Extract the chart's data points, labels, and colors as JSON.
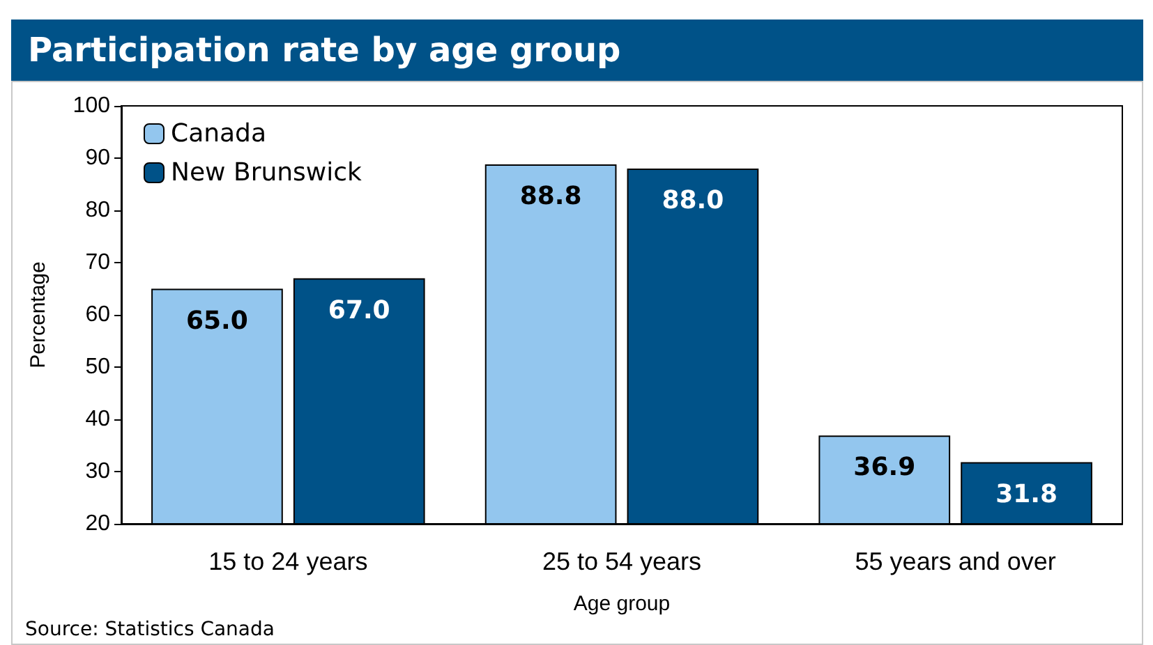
{
  "chart_data": {
    "type": "bar",
    "title": "Participation rate by age group",
    "xlabel": "Age group",
    "ylabel": "Percentage",
    "categories": [
      "15 to 24 years",
      "25 to 54 years",
      "55 years and over"
    ],
    "series": [
      {
        "name": "Canada",
        "color": "#93c6ee",
        "values": [
          65.0,
          88.8,
          36.9
        ],
        "value_labels": [
          "65.0",
          "88.8",
          "36.9"
        ]
      },
      {
        "name": "New Brunswick",
        "color": "#005288",
        "values": [
          67.0,
          88.0,
          31.8
        ],
        "value_labels": [
          "67.0",
          "88.0",
          "31.8"
        ]
      }
    ],
    "ylim": [
      20,
      100
    ],
    "yticks": [
      20,
      30,
      40,
      50,
      60,
      70,
      80,
      90,
      100
    ],
    "grid": false,
    "legend": "top left",
    "annotations": [
      "Source: Statistics Canada"
    ]
  }
}
